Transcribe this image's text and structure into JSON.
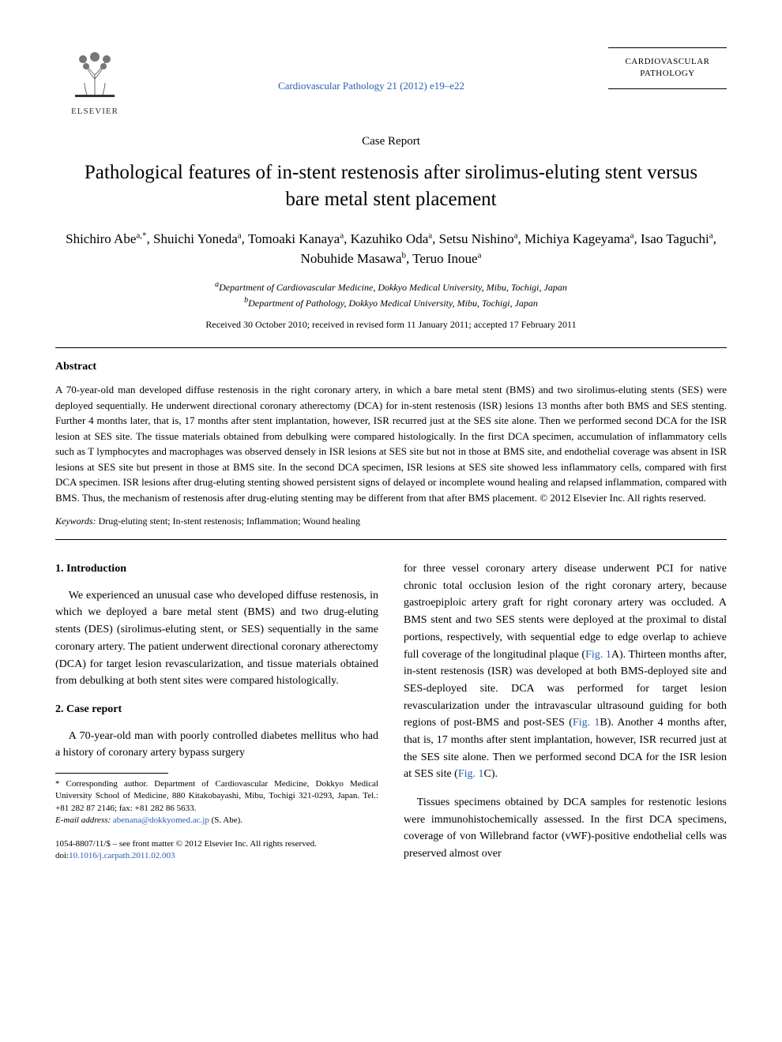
{
  "header": {
    "publisher": "ELSEVIER",
    "citation": "Cardiovascular Pathology 21 (2012) e19–e22",
    "journal_line1": "CARDIOVASCULAR",
    "journal_line2": "PATHOLOGY"
  },
  "meta": {
    "article_type": "Case Report",
    "title": "Pathological features of in-stent restenosis after sirolimus-eluting stent versus bare metal stent placement",
    "authors_html": "Shichiro Abe<sup>a,*</sup>, Shuichi Yoneda<sup>a</sup>, Tomoaki Kanaya<sup>a</sup>, Kazuhiko Oda<sup>a</sup>, Setsu Nishino<sup>a</sup>, Michiya Kageyama<sup>a</sup>, Isao Taguchi<sup>a</sup>, Nobuhide Masawa<sup>b</sup>, Teruo Inoue<sup>a</sup>",
    "affil_a": "Department of Cardiovascular Medicine, Dokkyo Medical University, Mibu, Tochigi, Japan",
    "affil_b": "Department of Pathology, Dokkyo Medical University, Mibu, Tochigi, Japan",
    "dates": "Received 30 October 2010; received in revised form 11 January 2011; accepted 17 February 2011"
  },
  "abstract": {
    "head": "Abstract",
    "text": "A 70-year-old man developed diffuse restenosis in the right coronary artery, in which a bare metal stent (BMS) and two sirolimus-eluting stents (SES) were deployed sequentially. He underwent directional coronary atherectomy (DCA) for in-stent restenosis (ISR) lesions 13 months after both BMS and SES stenting. Further 4 months later, that is, 17 months after stent implantation, however, ISR recurred just at the SES site alone. Then we performed second DCA for the ISR lesion at SES site. The tissue materials obtained from debulking were compared histologically. In the first DCA specimen, accumulation of inflammatory cells such as T lymphocytes and macrophages was observed densely in ISR lesions at SES site but not in those at BMS site, and endothelial coverage was absent in ISR lesions at SES site but present in those at BMS site. In the second DCA specimen, ISR lesions at SES site showed less inflammatory cells, compared with first DCA specimen. ISR lesions after drug-eluting stenting showed persistent signs of delayed or incomplete wound healing and relapsed inflammation, compared with BMS. Thus, the mechanism of restenosis after drug-eluting stenting may be different from that after BMS placement. © 2012 Elsevier Inc. All rights reserved.",
    "keywords_label": "Keywords:",
    "keywords": " Drug-eluting stent; In-stent restenosis; Inflammation; Wound healing"
  },
  "body": {
    "s1_head": "1. Introduction",
    "s1_p1": "We experienced an unusual case who developed diffuse restenosis, in which we deployed a bare metal stent (BMS) and two drug-eluting stents (DES) (sirolimus-eluting stent, or SES) sequentially in the same coronary artery. The patient underwent directional coronary atherectomy (DCA) for target lesion revascularization, and tissue materials obtained from debulking at both stent sites were compared histologically.",
    "s2_head": "2. Case report",
    "s2_p1": "A 70-year-old man with poorly controlled diabetes mellitus who had a history of coronary artery bypass surgery",
    "s2_p1b_pre": "for three vessel coronary artery disease underwent PCI for native chronic total occlusion lesion of the right coronary artery, because gastroepiploic artery graft for right coronary artery was occluded. A BMS stent and two SES stents were deployed at the proximal to distal portions, respectively, with sequential edge to edge overlap to achieve full coverage of the longitudinal plaque (",
    "fig1A": "Fig. 1",
    "s2_p1b_mid1": "A). Thirteen months after, in-stent restenosis (ISR) was developed at both BMS-deployed site and SES-deployed site. DCA was performed for target lesion revascularization under the intravascular ultrasound guiding for both regions of post-BMS and post-SES (",
    "fig1B": "Fig. 1",
    "s2_p1b_mid2": "B). Another 4 months after, that is, 17 months after stent implantation, however, ISR recurred just at the SES site alone. Then we performed second DCA for the ISR lesion at SES site (",
    "fig1C": "Fig. 1",
    "s2_p1b_end": "C).",
    "s2_p2": "Tissues specimens obtained by DCA samples for restenotic lesions were immunohistochemically assessed. In the first DCA specimens, coverage of von Willebrand factor (vWF)-positive endothelial cells was preserved almost over"
  },
  "footnote": {
    "corr": "* Corresponding author. Department of Cardiovascular Medicine, Dokkyo Medical University School of Medicine, 880 Kitakobayashi, Mibu, Tochigi 321-0293, Japan. Tel.: +81 282 87 2146; fax: +81 282 86 5633.",
    "email_label": "E-mail address: ",
    "email": "abenana@dokkyomed.ac.jp",
    "email_tail": " (S. Abe)."
  },
  "bottom": {
    "copyright": "1054-8807/11/$ – see front matter © 2012 Elsevier Inc. All rights reserved.",
    "doi_label": "doi:",
    "doi": "10.1016/j.carpath.2011.02.003"
  },
  "colors": {
    "link": "#2a5db0",
    "text": "#000000",
    "logo_orange": "#e67817"
  }
}
